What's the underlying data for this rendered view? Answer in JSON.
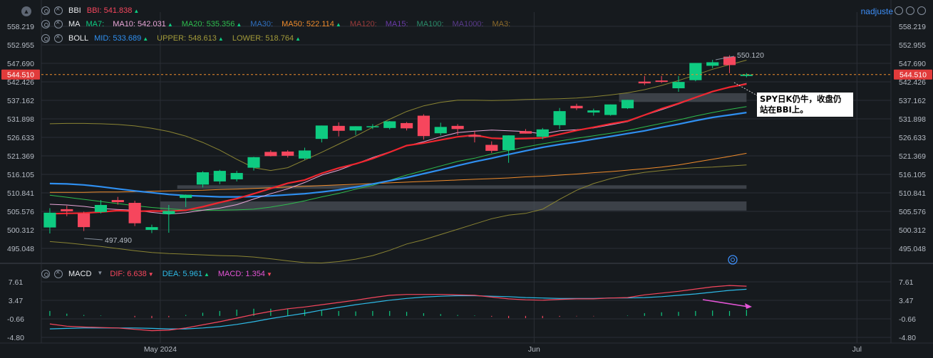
{
  "legend": {
    "bbi": {
      "name": "BBI",
      "items": [
        {
          "label": "BBI:",
          "value": "541.838",
          "dir": "up",
          "color": "#f6465d"
        }
      ]
    },
    "ma": {
      "name": "MA",
      "items": [
        {
          "label": "MA7:",
          "value": "",
          "dir": "",
          "color": "#0ecb81"
        },
        {
          "label": "MA10:",
          "value": "542.031",
          "dir": "up",
          "color": "#e9a6d8"
        },
        {
          "label": "MA20:",
          "value": "535.356",
          "dir": "up",
          "color": "#2ebd4e"
        },
        {
          "label": "MA30:",
          "value": "",
          "dir": "",
          "color": "#2f6fbf"
        },
        {
          "label": "MA50:",
          "value": "522.114",
          "dir": "up",
          "color": "#f08c2c"
        },
        {
          "label": "MA120:",
          "value": "",
          "dir": "",
          "color": "#9a3b3b"
        },
        {
          "label": "MA15:",
          "value": "",
          "dir": "",
          "color": "#6a3aa8"
        },
        {
          "label": "MA100:",
          "value": "",
          "dir": "",
          "color": "#2a8c6a"
        },
        {
          "label": "MA1000:",
          "value": "",
          "dir": "",
          "color": "#5a3a8c"
        },
        {
          "label": "MA3:",
          "value": "",
          "dir": "",
          "color": "#8c6a2a"
        }
      ]
    },
    "boll": {
      "name": "BOLL",
      "items": [
        {
          "label": "MID:",
          "value": "533.689",
          "dir": "up",
          "color": "#2f8ff0"
        },
        {
          "label": "UPPER:",
          "value": "548.613",
          "dir": "up",
          "color": "#a39b3a"
        },
        {
          "label": "LOWER:",
          "value": "518.764",
          "dir": "up",
          "color": "#a39b3a"
        }
      ]
    },
    "macd": {
      "name": "MACD",
      "items": [
        {
          "label": "DIF:",
          "value": "6.638",
          "dir": "down",
          "color": "#f6465d"
        },
        {
          "label": "DEA:",
          "value": "5.961",
          "dir": "up",
          "color": "#2ebbe8"
        },
        {
          "label": "MACD:",
          "value": "1.354",
          "dir": "down",
          "color": "#e455d6"
        }
      ]
    }
  },
  "header": {
    "user": "nadjuste",
    "collapse_glyph": "▲"
  },
  "colors": {
    "up": "#0ecb81",
    "down": "#f6465d",
    "grid": "#2b2f36",
    "bg": "#161a1e"
  },
  "chart_data": {
    "type": "candlestick",
    "price_ticks": [
      "558.219",
      "552.955",
      "547.690",
      "542.426",
      "537.162",
      "531.898",
      "526.633",
      "521.369",
      "516.105",
      "510.841",
      "505.576",
      "500.312",
      "495.048"
    ],
    "price_ylim": [
      495.048,
      558.219
    ],
    "macd_ticks": [
      "7.61",
      "3.47",
      "-0.66",
      "-4.80"
    ],
    "macd_ylim": [
      -4.8,
      7.61
    ],
    "x_labels": [
      "May 2024",
      "Jun",
      "Jul"
    ],
    "x_label_index": [
      6.5,
      28.5,
      47.5
    ],
    "num_slots": 50,
    "current_price": "544.510",
    "current_price_value": 544.51,
    "high_annotation": "550.120",
    "high_annotation_value": 550.12,
    "low_annotation": "497.490",
    "low_annotation_value": 497.49,
    "note": "SPY日K仍牛，收盘仍站在BBI上。",
    "candles": [
      {
        "o": 501.0,
        "h": 506.5,
        "l": 499.3,
        "c": 505.2
      },
      {
        "o": 506.2,
        "h": 507.2,
        "l": 504.2,
        "c": 505.6
      },
      {
        "o": 505.0,
        "h": 505.5,
        "l": 500.0,
        "c": 501.1
      },
      {
        "o": 505.4,
        "h": 508.8,
        "l": 505.0,
        "c": 507.4
      },
      {
        "o": 508.8,
        "h": 509.7,
        "l": 507.5,
        "c": 508.2
      },
      {
        "o": 508.0,
        "h": 508.6,
        "l": 501.4,
        "c": 502.2
      },
      {
        "o": 500.3,
        "h": 501.8,
        "l": 499.4,
        "c": 501.1
      },
      {
        "o": 504.8,
        "h": 507.4,
        "l": 499.5,
        "c": 505.7
      },
      {
        "o": 509.4,
        "h": 510.4,
        "l": 506.8,
        "c": 510.3
      },
      {
        "o": 513.2,
        "h": 517.0,
        "l": 512.4,
        "c": 516.7
      },
      {
        "o": 514.1,
        "h": 517.4,
        "l": 513.3,
        "c": 517.1
      },
      {
        "o": 514.7,
        "h": 517.1,
        "l": 514.1,
        "c": 516.5
      },
      {
        "o": 518.0,
        "h": 521.1,
        "l": 517.2,
        "c": 521.0
      },
      {
        "o": 522.5,
        "h": 523.0,
        "l": 521.2,
        "c": 521.3
      },
      {
        "o": 522.6,
        "h": 523.0,
        "l": 520.9,
        "c": 521.4
      },
      {
        "o": 520.6,
        "h": 523.7,
        "l": 520.2,
        "c": 522.9
      },
      {
        "o": 526.2,
        "h": 530.0,
        "l": 525.2,
        "c": 530.0
      },
      {
        "o": 529.9,
        "h": 530.9,
        "l": 526.9,
        "c": 528.5
      },
      {
        "o": 528.6,
        "h": 529.8,
        "l": 527.3,
        "c": 529.8
      },
      {
        "o": 529.6,
        "h": 530.4,
        "l": 529.0,
        "c": 529.8
      },
      {
        "o": 529.3,
        "h": 531.3,
        "l": 528.9,
        "c": 531.2
      },
      {
        "o": 530.7,
        "h": 531.0,
        "l": 528.6,
        "c": 529.2
      },
      {
        "o": 532.8,
        "h": 533.2,
        "l": 526.0,
        "c": 527.0
      },
      {
        "o": 527.8,
        "h": 530.8,
        "l": 527.2,
        "c": 529.6
      },
      {
        "o": 529.9,
        "h": 530.4,
        "l": 527.3,
        "c": 529.0
      },
      {
        "o": 527.3,
        "h": 528.4,
        "l": 525.2,
        "c": 526.8
      },
      {
        "o": 524.5,
        "h": 525.5,
        "l": 522.2,
        "c": 522.8
      },
      {
        "o": 523.0,
        "h": 527.2,
        "l": 519.4,
        "c": 527.2
      },
      {
        "o": 528.4,
        "h": 529.0,
        "l": 527.7,
        "c": 527.7
      },
      {
        "o": 526.8,
        "h": 529.3,
        "l": 526.1,
        "c": 528.9
      },
      {
        "o": 530.1,
        "h": 535.0,
        "l": 529.0,
        "c": 534.1
      },
      {
        "o": 535.6,
        "h": 536.2,
        "l": 534.4,
        "c": 534.9
      },
      {
        "o": 533.7,
        "h": 534.8,
        "l": 532.8,
        "c": 534.3
      },
      {
        "o": 533.0,
        "h": 536.0,
        "l": 532.8,
        "c": 536.0
      },
      {
        "o": 534.9,
        "h": 537.3,
        "l": 534.7,
        "c": 537.3
      },
      {
        "o": 542.5,
        "h": 544.1,
        "l": 541.5,
        "c": 542.0
      },
      {
        "o": 542.8,
        "h": 544.1,
        "l": 542.1,
        "c": 542.4
      },
      {
        "o": 540.6,
        "h": 544.1,
        "l": 539.6,
        "c": 542.4
      },
      {
        "o": 542.9,
        "h": 547.8,
        "l": 542.6,
        "c": 547.8
      },
      {
        "o": 547.0,
        "h": 548.7,
        "l": 546.3,
        "c": 548.0
      },
      {
        "o": 549.6,
        "h": 550.0,
        "l": 544.9,
        "c": 547.2
      },
      {
        "o": 544.1,
        "h": 544.9,
        "l": 543.7,
        "c": 544.5
      }
    ],
    "series": {
      "bbi": [
        504.9,
        505.0,
        505.1,
        505.4,
        505.8,
        505.6,
        505.7,
        505.6,
        505.9,
        506.9,
        508.1,
        509.2,
        510.6,
        512.1,
        513.6,
        514.5,
        516.4,
        517.9,
        519.1,
        520.6,
        522.4,
        524.3,
        525.0,
        525.9,
        526.8,
        527.3,
        526.4,
        526.2,
        526.3,
        526.5,
        527.5,
        528.6,
        529.5,
        530.5,
        531.3,
        533.0,
        534.8,
        536.3,
        538.0,
        539.7,
        540.9,
        541.8
      ],
      "ma10": [
        507.6,
        507.4,
        507.0,
        506.4,
        506.1,
        505.9,
        505.3,
        504.8,
        505.2,
        505.9,
        506.5,
        507.5,
        509.1,
        510.6,
        512.0,
        513.8,
        515.9,
        517.3,
        519.1,
        520.9,
        522.5,
        524.2,
        525.4,
        526.8,
        528.0,
        528.4,
        528.7,
        528.5,
        528.3,
        527.6,
        528.5,
        528.8,
        529.3,
        530.2,
        531.1,
        532.9,
        534.5,
        536.1,
        537.9,
        539.6,
        540.9,
        542.0
      ],
      "ma20": [
        510.2,
        509.6,
        509.0,
        508.4,
        507.8,
        507.2,
        506.7,
        506.3,
        506.0,
        505.9,
        505.9,
        506.0,
        506.2,
        506.8,
        507.6,
        508.6,
        509.7,
        510.7,
        511.9,
        513.0,
        514.4,
        515.9,
        517.2,
        518.5,
        519.8,
        520.7,
        521.9,
        522.9,
        523.9,
        524.8,
        525.6,
        526.4,
        527.1,
        527.8,
        528.6,
        529.6,
        530.6,
        531.6,
        532.7,
        533.7,
        534.6,
        535.4
      ],
      "mid": [
        513.5,
        513.4,
        513.1,
        512.6,
        512.0,
        511.4,
        510.9,
        510.4,
        510.1,
        509.9,
        509.7,
        509.7,
        509.8,
        510.0,
        510.3,
        510.6,
        511.1,
        511.7,
        512.5,
        513.4,
        514.3,
        515.2,
        516.3,
        517.4,
        518.6,
        519.7,
        520.7,
        521.8,
        522.8,
        523.8,
        524.6,
        525.3,
        526.1,
        526.9,
        527.7,
        528.5,
        529.5,
        530.4,
        531.4,
        532.3,
        533.0,
        533.7
      ],
      "ma50": [
        511.0,
        511.0,
        511.0,
        511.1,
        511.1,
        511.2,
        511.3,
        511.4,
        511.5,
        511.6,
        511.8,
        511.9,
        512.1,
        512.3,
        512.5,
        512.7,
        512.9,
        513.1,
        513.3,
        513.5,
        513.7,
        513.9,
        514.1,
        514.3,
        514.5,
        514.7,
        514.9,
        515.1,
        515.4,
        515.6,
        515.9,
        516.2,
        516.6,
        516.9,
        517.3,
        517.7,
        518.2,
        518.8,
        519.6,
        520.4,
        521.2,
        522.1
      ],
      "upper": [
        530.5,
        530.6,
        530.6,
        530.5,
        530.3,
        529.9,
        529.2,
        528.3,
        527.0,
        525.2,
        523.0,
        520.4,
        518.0,
        517.2,
        518.0,
        520.2,
        522.4,
        524.7,
        527.0,
        529.5,
        531.8,
        534.0,
        535.6,
        536.6,
        537.2,
        537.2,
        537.1,
        537.2,
        537.4,
        537.5,
        537.6,
        537.8,
        538.2,
        538.7,
        539.3,
        540.2,
        541.4,
        542.8,
        544.4,
        546.0,
        547.3,
        548.6
      ],
      "lower": [
        497.0,
        496.6,
        496.1,
        495.6,
        495.0,
        494.4,
        493.9,
        493.6,
        493.4,
        493.2,
        493.0,
        492.9,
        492.6,
        492.1,
        491.5,
        491.0,
        490.9,
        491.3,
        492.0,
        493.0,
        494.5,
        496.3,
        497.5,
        499.0,
        500.5,
        502.0,
        503.5,
        504.5,
        505.0,
        506.2,
        509.0,
        511.6,
        513.5,
        514.9,
        515.9,
        516.7,
        517.2,
        517.7,
        518.0,
        518.2,
        518.5,
        518.8
      ]
    },
    "macd": {
      "dif": [
        -1.8,
        -2.3,
        -2.5,
        -2.6,
        -2.7,
        -3.0,
        -3.3,
        -3.2,
        -2.7,
        -2.0,
        -1.3,
        -0.5,
        0.3,
        1.0,
        1.6,
        2.0,
        2.5,
        3.0,
        3.5,
        4.1,
        4.6,
        4.8,
        4.8,
        4.8,
        4.7,
        4.6,
        4.2,
        3.8,
        3.6,
        3.5,
        3.7,
        3.8,
        3.8,
        4.0,
        4.1,
        4.7,
        5.1,
        5.5,
        6.0,
        6.5,
        6.8,
        6.638
      ],
      "dea": [
        -2.9,
        -2.8,
        -2.7,
        -2.7,
        -2.7,
        -2.7,
        -2.8,
        -2.9,
        -2.9,
        -2.7,
        -2.4,
        -1.9,
        -1.3,
        -0.6,
        0.0,
        0.6,
        1.3,
        1.9,
        2.5,
        3.0,
        3.5,
        3.9,
        4.2,
        4.4,
        4.5,
        4.5,
        4.4,
        4.3,
        4.1,
        4.0,
        3.9,
        3.9,
        3.9,
        4.0,
        4.0,
        4.1,
        4.3,
        4.6,
        4.9,
        5.3,
        5.7,
        5.961
      ],
      "hist": [
        1.1,
        0.5,
        0.2,
        0.1,
        0.0,
        -0.3,
        -0.5,
        -0.3,
        0.2,
        0.7,
        1.1,
        1.4,
        1.6,
        1.6,
        1.6,
        1.4,
        1.2,
        1.1,
        1.0,
        1.1,
        1.1,
        0.9,
        0.6,
        0.4,
        0.2,
        0.1,
        -0.2,
        -0.5,
        -0.5,
        -0.5,
        -0.2,
        -0.1,
        -0.1,
        0.0,
        0.1,
        0.6,
        0.8,
        0.9,
        1.1,
        1.2,
        1.1,
        1.354
      ]
    }
  }
}
